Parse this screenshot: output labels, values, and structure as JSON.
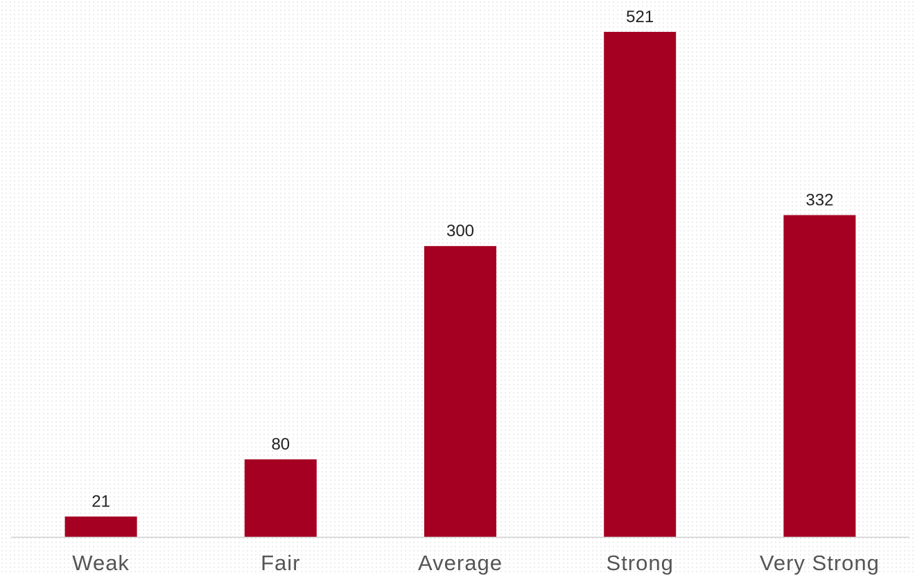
{
  "chart_data": {
    "type": "bar",
    "title": "",
    "xlabel": "",
    "ylabel": "",
    "categories": [
      "Weak",
      "Fair",
      "Average",
      "Strong",
      "Very Strong"
    ],
    "values": [
      21,
      80,
      300,
      521,
      332
    ],
    "data_labels": [
      "21",
      "80",
      "300",
      "521",
      "332"
    ],
    "ylim": [
      0,
      521
    ],
    "grid": false,
    "legend": "none",
    "colors": {
      "bar": "#A50021",
      "axis": "#d0d0d0",
      "value_label": "#222222",
      "category_label": "#555555"
    }
  }
}
